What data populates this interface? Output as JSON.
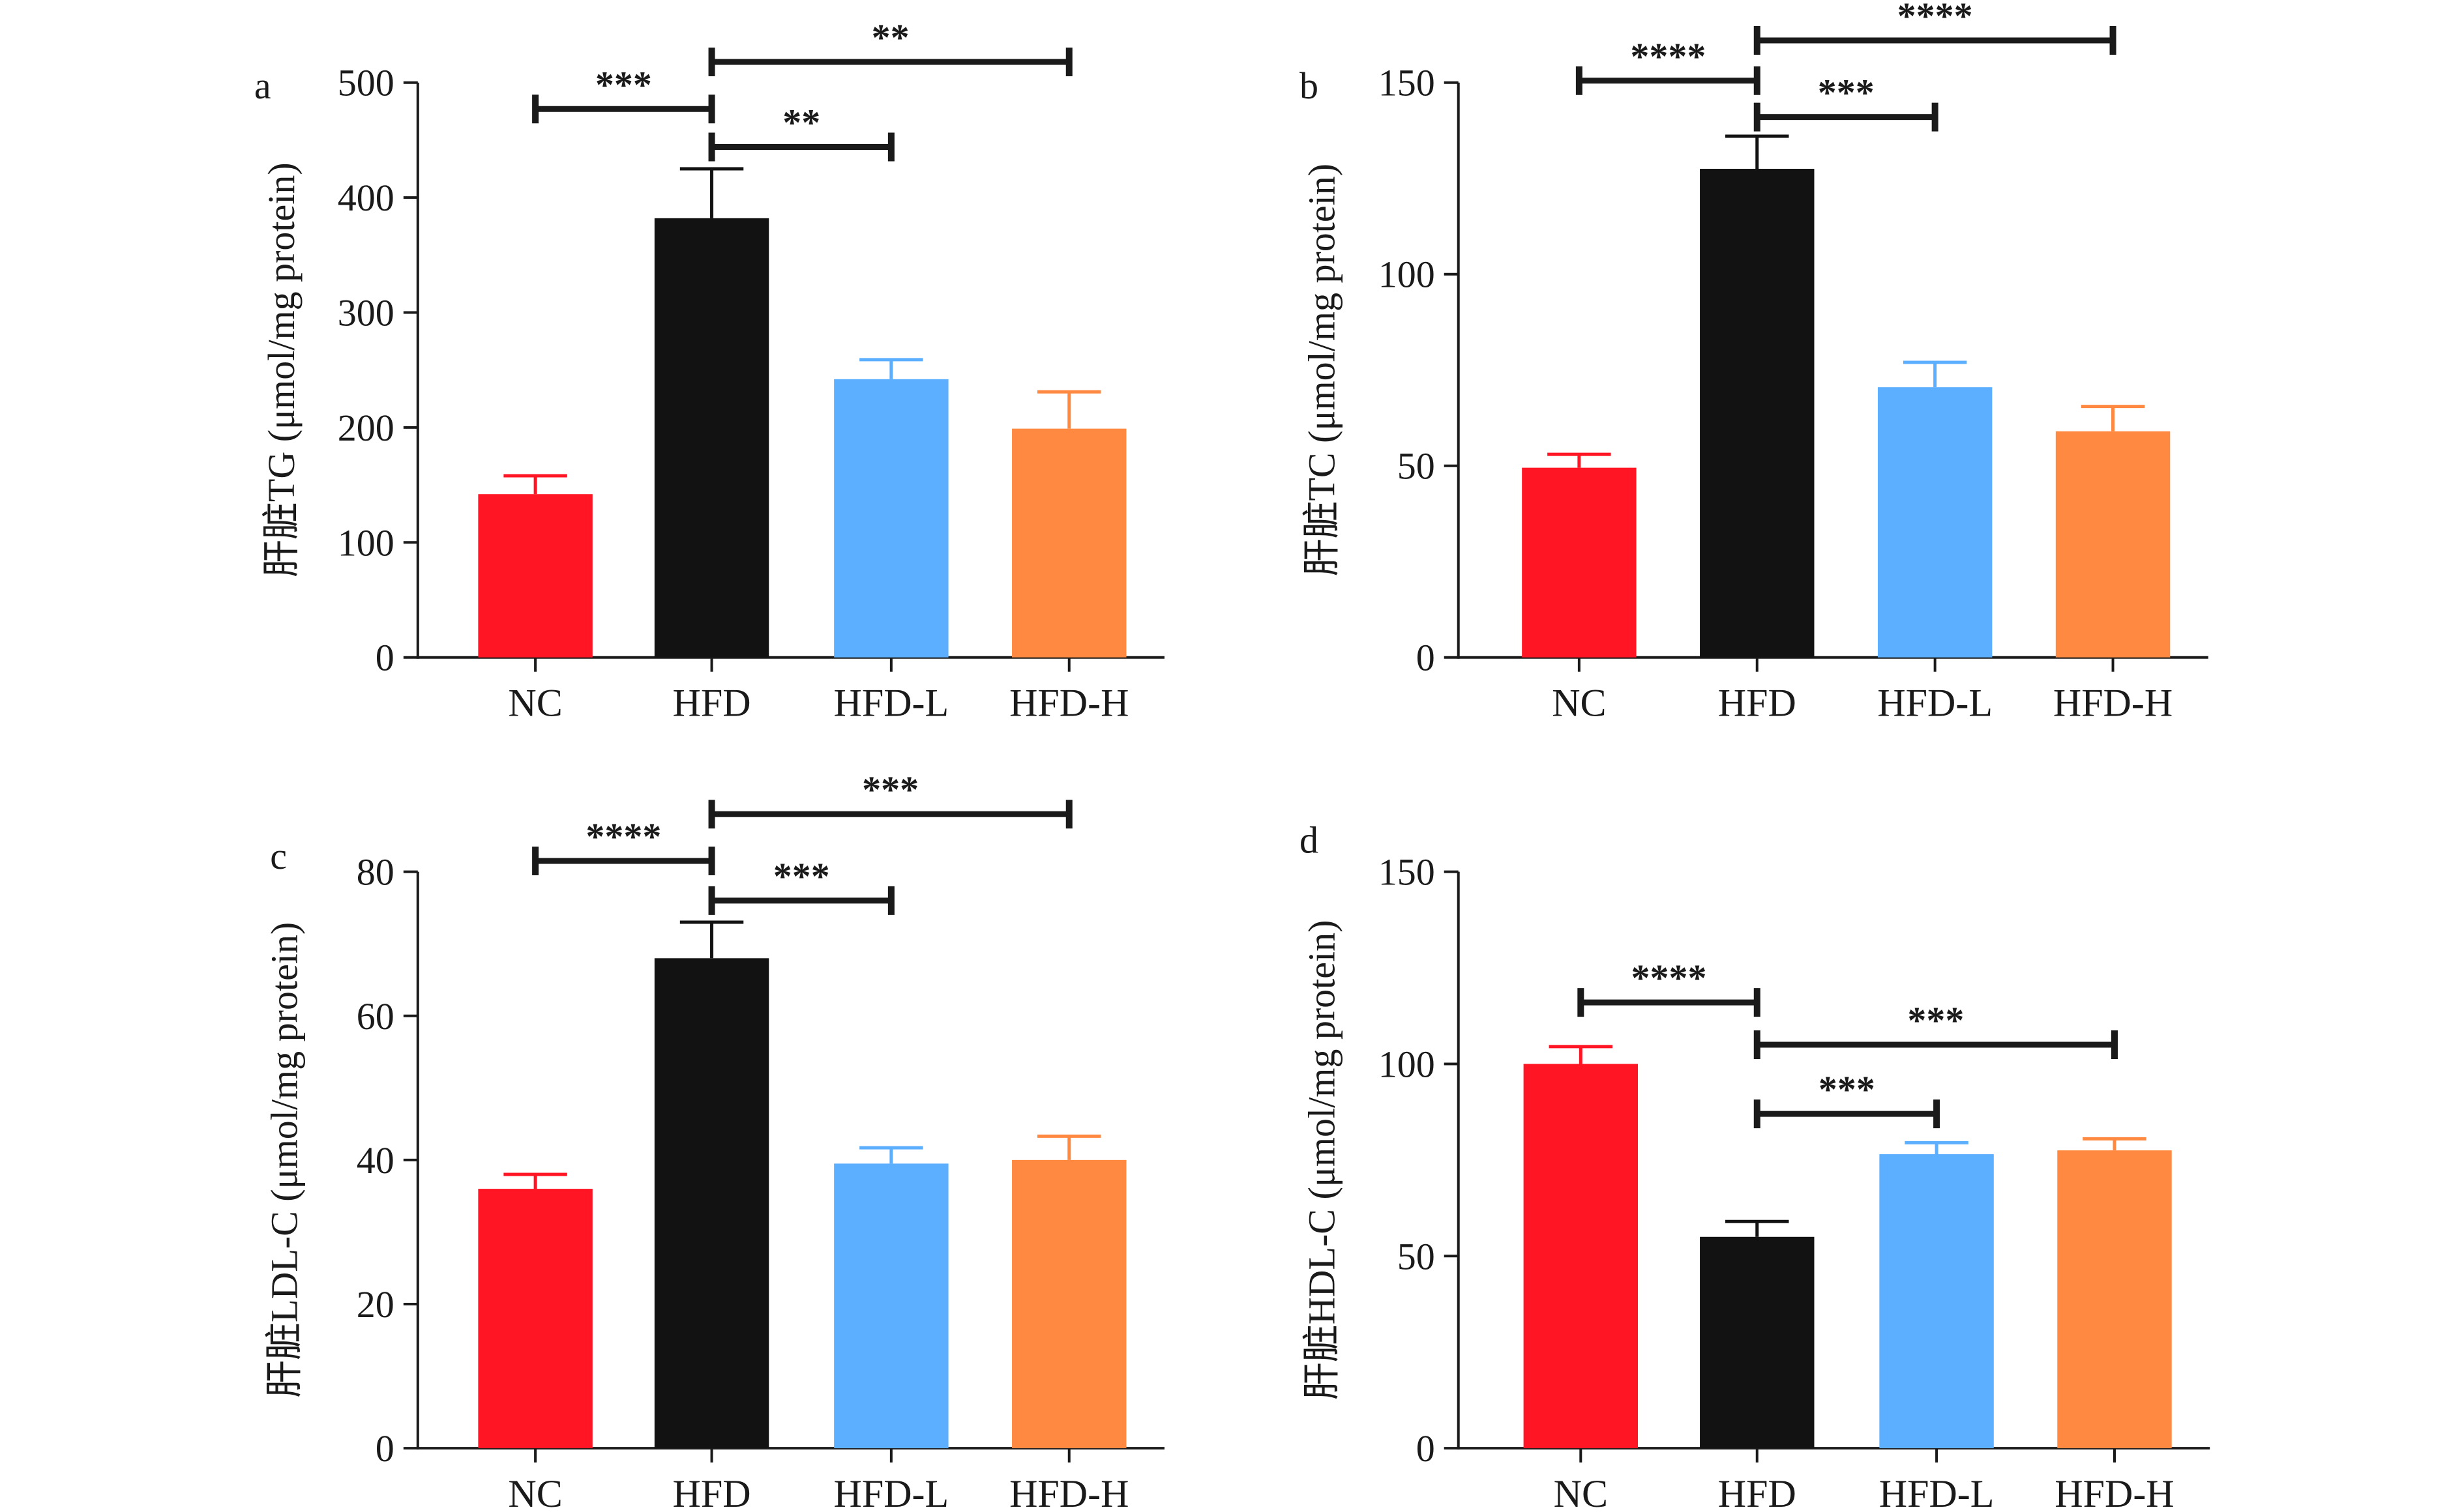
{
  "chart_data": [
    {
      "type": "bar",
      "panel_label": "a",
      "categories": [
        "NC",
        "HFD",
        "HFD-L",
        "HFD-H"
      ],
      "values": [
        142,
        382,
        242,
        199
      ],
      "errors": [
        16,
        43,
        17,
        32
      ],
      "colors": [
        "#ff1523",
        "#121212",
        "#5caeff",
        "#ff8940"
      ],
      "ylabel": "肝脏TG (μmol/mg protein)",
      "ylim": [
        0,
        500
      ],
      "yticks": [
        "0",
        "100",
        "200",
        "300",
        "400",
        "500"
      ],
      "significance": [
        {
          "from": 0,
          "to": 1,
          "label": "***",
          "y": 477
        },
        {
          "from": 1,
          "to": 2,
          "label": "**",
          "y": 444
        },
        {
          "from": 1,
          "to": 3,
          "label": "**",
          "y": 518
        }
      ]
    },
    {
      "type": "bar",
      "panel_label": "b",
      "categories": [
        "NC",
        "HFD",
        "HFD-L",
        "HFD-H"
      ],
      "values": [
        49.5,
        127.5,
        70.5,
        59
      ],
      "errors": [
        3.5,
        8.5,
        6.5,
        6.5
      ],
      "colors": [
        "#ff1523",
        "#121212",
        "#5caeff",
        "#ff8940"
      ],
      "ylabel": "肝脏TC (μmol/mg protein)",
      "ylim": [
        0,
        150
      ],
      "yticks": [
        "0",
        "50",
        "100",
        "150"
      ],
      "significance": [
        {
          "from": 0,
          "to": 1,
          "label": "****",
          "y": 150.5
        },
        {
          "from": 1,
          "to": 2,
          "label": "***",
          "y": 141
        },
        {
          "from": 1,
          "to": 3,
          "label": "****",
          "y": 161
        }
      ]
    },
    {
      "type": "bar",
      "panel_label": "c",
      "categories": [
        "NC",
        "HFD",
        "HFD-L",
        "HFD-H"
      ],
      "values": [
        36,
        68,
        39.5,
        40
      ],
      "errors": [
        2,
        5,
        2.2,
        3.3
      ],
      "colors": [
        "#ff1523",
        "#121212",
        "#5caeff",
        "#ff8940"
      ],
      "ylabel": "肝脏LDL-C (μmol/mg protein)",
      "ylim": [
        0,
        80
      ],
      "yticks": [
        "0",
        "20",
        "40",
        "60",
        "80"
      ],
      "significance": [
        {
          "from": 0,
          "to": 1,
          "label": "****",
          "y": 81.5
        },
        {
          "from": 1,
          "to": 2,
          "label": "***",
          "y": 76
        },
        {
          "from": 1,
          "to": 3,
          "label": "***",
          "y": 88
        }
      ]
    },
    {
      "type": "bar",
      "panel_label": "d",
      "categories": [
        "NC",
        "HFD",
        "HFD-L",
        "HFD-H"
      ],
      "values": [
        100,
        55,
        76.5,
        77.5
      ],
      "errors": [
        4.5,
        4,
        3,
        3
      ],
      "colors": [
        "#ff1523",
        "#121212",
        "#5caeff",
        "#ff8940"
      ],
      "ylabel": "肝脏HDL-C (μmol/mg protein)",
      "ylim": [
        0,
        150
      ],
      "yticks": [
        "0",
        "50",
        "100",
        "150"
      ],
      "significance": [
        {
          "from": 0,
          "to": 1,
          "label": "****",
          "y": 116
        },
        {
          "from": 1,
          "to": 2,
          "label": "***",
          "y": 87
        },
        {
          "from": 1,
          "to": 3,
          "label": "***",
          "y": 105
        }
      ]
    }
  ]
}
